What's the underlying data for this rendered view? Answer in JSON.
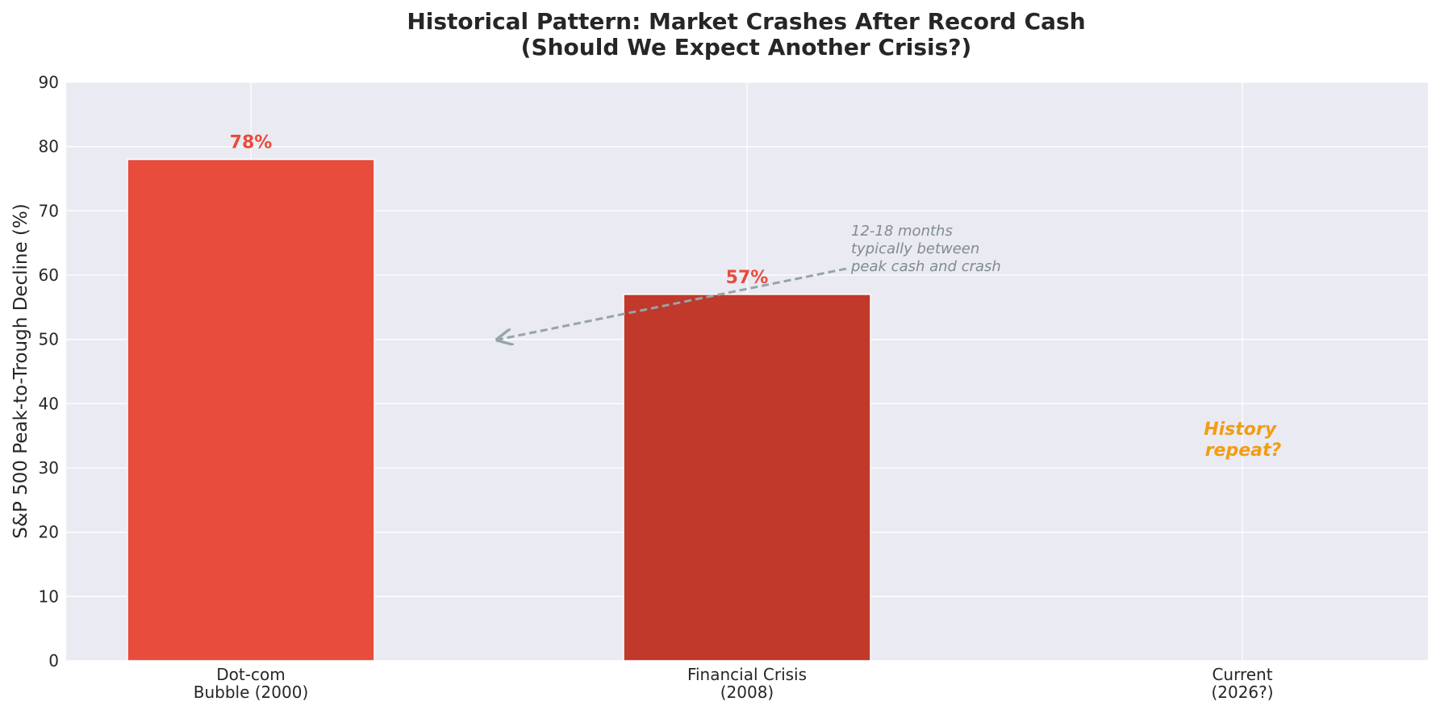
{
  "chart_data": {
    "type": "bar",
    "title": [
      "Historical Pattern: Market Crashes After Record Cash",
      "(Should We Expect Another Crisis?)"
    ],
    "ylabel": "S&P 500 Peak-to-Trough Decline (%)",
    "xlabel": "",
    "ylim": [
      0,
      90
    ],
    "yticks": [
      0,
      10,
      20,
      30,
      40,
      50,
      60,
      70,
      80,
      90
    ],
    "grid": true,
    "categories": [
      [
        "Dot-com",
        "Bubble (2000)"
      ],
      [
        "Financial Crisis",
        "(2008)"
      ],
      [
        "Current",
        "(2026?)"
      ]
    ],
    "values": [
      78,
      57,
      null
    ],
    "bar_colors": [
      "#e74c3c",
      "#c0392b",
      "#e74c3c"
    ],
    "data_labels": [
      "78%",
      "57%",
      ""
    ],
    "data_label_color": "#e74c3c",
    "annotation": {
      "text": [
        "12-18 months",
        "typically between",
        "peak cash and crash"
      ],
      "arrow_from": {
        "x": 1.2,
        "y": 61
      },
      "arrow_to": {
        "x": 0.5,
        "y": 50
      },
      "color": "#95a5a6"
    },
    "side_note": {
      "text": [
        "History",
        "repeat?"
      ],
      "x": 2,
      "y": 34,
      "color": "#f39c12"
    }
  },
  "colors": {
    "plot_background": "#eaeaf2",
    "grid": "#ffffff",
    "text": "#262626"
  }
}
